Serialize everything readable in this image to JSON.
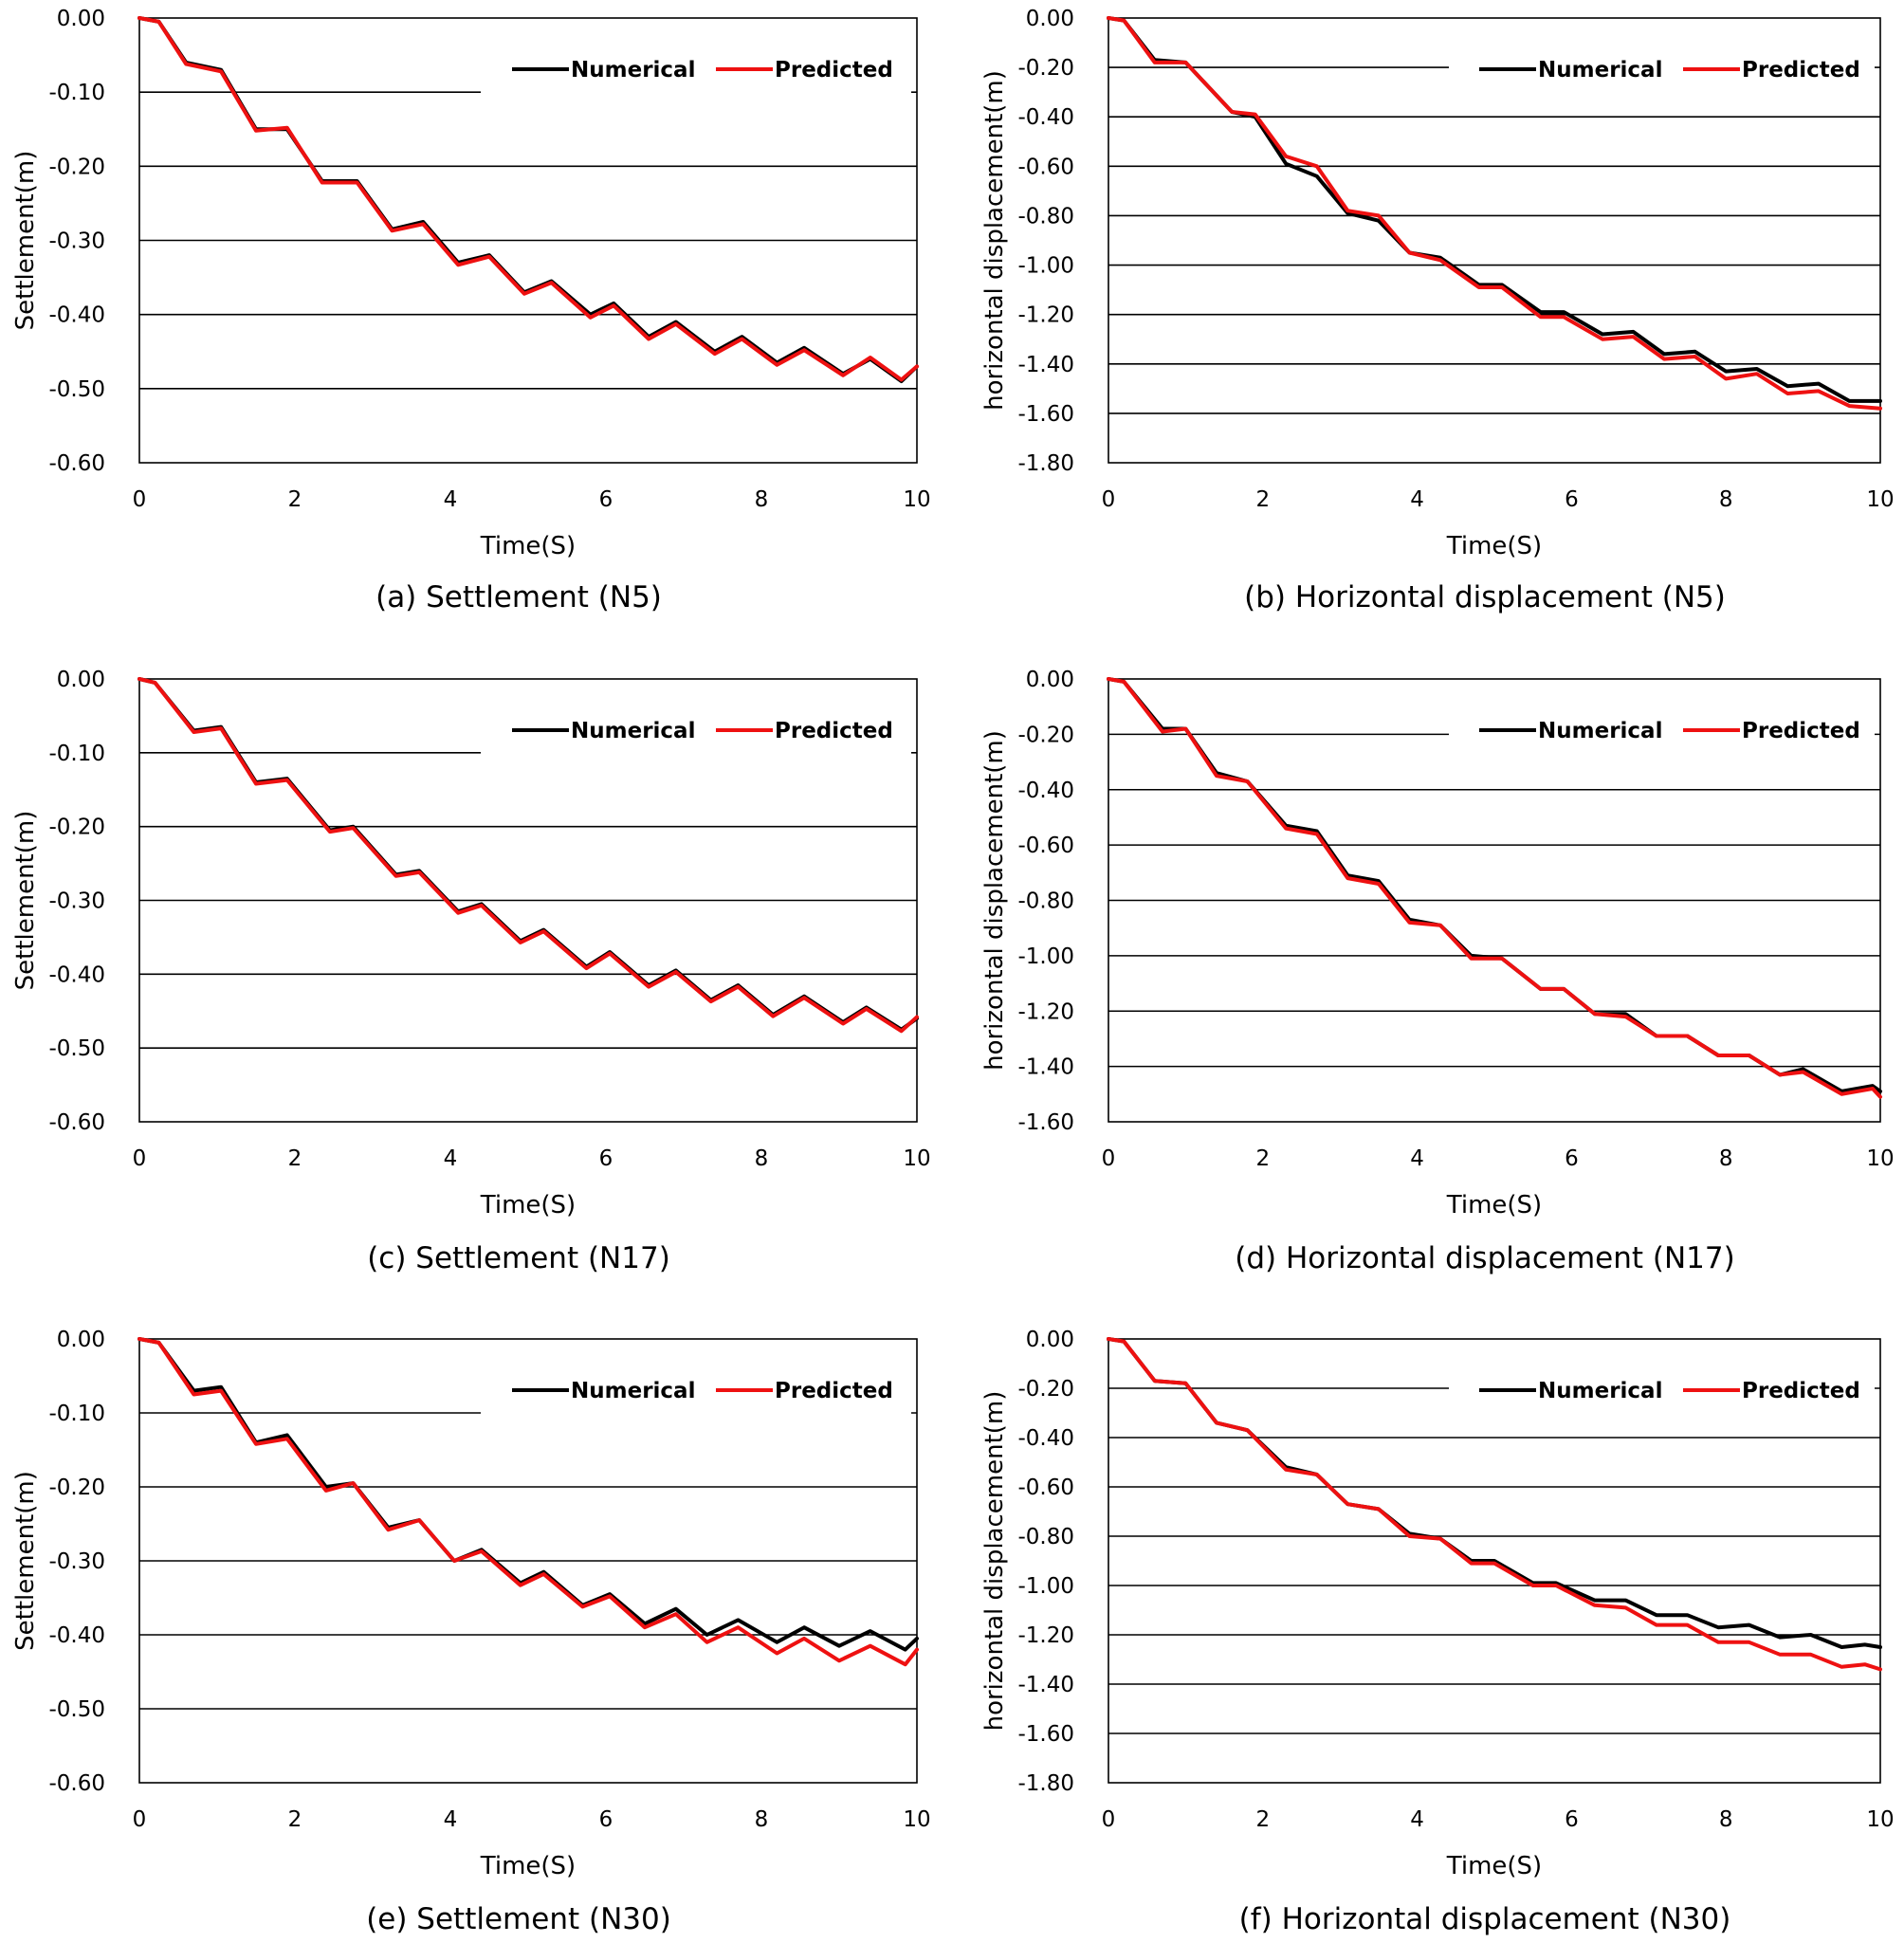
{
  "colors": {
    "numerical": "#000000",
    "predicted": "#ee1111",
    "grid": "#000000"
  },
  "chart_data": [
    {
      "type": "line",
      "caption": "(a)  Settlement  (N5)",
      "xlabel": "Time(S)",
      "ylabel": "Settlement(m)",
      "xlim": [
        0,
        10
      ],
      "ylim": [
        -0.6,
        0.0
      ],
      "xticks": [
        "0",
        "2",
        "4",
        "6",
        "8",
        "10"
      ],
      "yticks": [
        "0.00",
        "-0.10",
        "-0.20",
        "-0.30",
        "-0.40",
        "-0.50",
        "-0.60"
      ],
      "grid": "horizontal",
      "legend": "top-right",
      "series": [
        {
          "name": "Numerical",
          "x": [
            0,
            0.25,
            0.6,
            1.05,
            1.5,
            1.9,
            2.35,
            2.8,
            3.25,
            3.65,
            4.1,
            4.5,
            4.95,
            5.3,
            5.8,
            6.1,
            6.55,
            6.9,
            7.4,
            7.75,
            8.2,
            8.55,
            9.05,
            9.4,
            9.8,
            10
          ],
          "values": [
            0.0,
            -0.005,
            -0.06,
            -0.07,
            -0.15,
            -0.15,
            -0.22,
            -0.22,
            -0.285,
            -0.275,
            -0.33,
            -0.32,
            -0.37,
            -0.355,
            -0.4,
            -0.385,
            -0.43,
            -0.41,
            -0.45,
            -0.43,
            -0.465,
            -0.445,
            -0.48,
            -0.46,
            -0.49,
            -0.47
          ]
        },
        {
          "name": "Predicted",
          "x": [
            0,
            0.25,
            0.6,
            1.05,
            1.5,
            1.9,
            2.35,
            2.8,
            3.25,
            3.65,
            4.1,
            4.5,
            4.95,
            5.3,
            5.8,
            6.1,
            6.55,
            6.9,
            7.4,
            7.75,
            8.2,
            8.55,
            9.05,
            9.4,
            9.8,
            10
          ],
          "values": [
            0.0,
            -0.005,
            -0.062,
            -0.072,
            -0.152,
            -0.148,
            -0.222,
            -0.222,
            -0.287,
            -0.278,
            -0.333,
            -0.322,
            -0.372,
            -0.357,
            -0.404,
            -0.388,
            -0.433,
            -0.413,
            -0.453,
            -0.433,
            -0.468,
            -0.448,
            -0.482,
            -0.458,
            -0.488,
            -0.47
          ]
        }
      ]
    },
    {
      "type": "line",
      "caption": "(b)  Horizontal  displacement  (N5)",
      "xlabel": "Time(S)",
      "ylabel": "horizontal displacement(m)",
      "xlim": [
        0,
        10
      ],
      "ylim": [
        -1.8,
        0.0
      ],
      "xticks": [
        "0",
        "2",
        "4",
        "6",
        "8",
        "10"
      ],
      "yticks": [
        "0.00",
        "-0.20",
        "-0.40",
        "-0.60",
        "-0.80",
        "-1.00",
        "-1.20",
        "-1.40",
        "-1.60",
        "-1.80"
      ],
      "grid": "horizontal",
      "legend": "top-right",
      "series": [
        {
          "name": "Numerical",
          "x": [
            0,
            0.2,
            0.6,
            1.0,
            1.6,
            1.9,
            2.3,
            2.7,
            3.1,
            3.5,
            3.9,
            4.3,
            4.8,
            5.1,
            5.6,
            5.9,
            6.4,
            6.8,
            7.2,
            7.6,
            8.0,
            8.4,
            8.8,
            9.2,
            9.6,
            10
          ],
          "values": [
            0.0,
            -0.01,
            -0.17,
            -0.18,
            -0.38,
            -0.4,
            -0.59,
            -0.64,
            -0.79,
            -0.82,
            -0.95,
            -0.97,
            -1.08,
            -1.08,
            -1.19,
            -1.19,
            -1.28,
            -1.27,
            -1.36,
            -1.35,
            -1.43,
            -1.42,
            -1.49,
            -1.48,
            -1.55,
            -1.55
          ]
        },
        {
          "name": "Predicted",
          "x": [
            0,
            0.2,
            0.6,
            1.0,
            1.6,
            1.9,
            2.3,
            2.7,
            3.1,
            3.5,
            3.9,
            4.3,
            4.8,
            5.1,
            5.6,
            5.9,
            6.4,
            6.8,
            7.2,
            7.6,
            8.0,
            8.4,
            8.8,
            9.2,
            9.6,
            10
          ],
          "values": [
            0.0,
            -0.01,
            -0.18,
            -0.18,
            -0.38,
            -0.39,
            -0.56,
            -0.6,
            -0.78,
            -0.8,
            -0.95,
            -0.98,
            -1.09,
            -1.09,
            -1.21,
            -1.21,
            -1.3,
            -1.29,
            -1.38,
            -1.37,
            -1.46,
            -1.44,
            -1.52,
            -1.51,
            -1.57,
            -1.58
          ]
        }
      ]
    },
    {
      "type": "line",
      "caption": "(c)  Settlement  (N17)",
      "xlabel": "Time(S)",
      "ylabel": "Settlement(m)",
      "xlim": [
        0,
        10
      ],
      "ylim": [
        -0.6,
        0.0
      ],
      "xticks": [
        "0",
        "2",
        "4",
        "6",
        "8",
        "10"
      ],
      "yticks": [
        "0.00",
        "-0.10",
        "-0.20",
        "-0.30",
        "-0.40",
        "-0.50",
        "-0.60"
      ],
      "grid": "horizontal",
      "legend": "top-right",
      "series": [
        {
          "name": "Numerical",
          "x": [
            0,
            0.2,
            0.7,
            1.05,
            1.5,
            1.9,
            2.45,
            2.75,
            3.3,
            3.6,
            4.1,
            4.4,
            4.9,
            5.2,
            5.75,
            6.05,
            6.55,
            6.9,
            7.35,
            7.7,
            8.15,
            8.55,
            9.05,
            9.35,
            9.8,
            10
          ],
          "values": [
            0.0,
            -0.005,
            -0.07,
            -0.065,
            -0.14,
            -0.135,
            -0.205,
            -0.2,
            -0.265,
            -0.26,
            -0.315,
            -0.305,
            -0.355,
            -0.34,
            -0.39,
            -0.37,
            -0.415,
            -0.395,
            -0.435,
            -0.415,
            -0.455,
            -0.43,
            -0.465,
            -0.445,
            -0.475,
            -0.46
          ]
        },
        {
          "name": "Predicted",
          "x": [
            0,
            0.2,
            0.7,
            1.05,
            1.5,
            1.9,
            2.45,
            2.75,
            3.3,
            3.6,
            4.1,
            4.4,
            4.9,
            5.2,
            5.75,
            6.05,
            6.55,
            6.9,
            7.35,
            7.7,
            8.15,
            8.55,
            9.05,
            9.35,
            9.8,
            10
          ],
          "values": [
            0.0,
            -0.005,
            -0.072,
            -0.067,
            -0.142,
            -0.137,
            -0.207,
            -0.202,
            -0.267,
            -0.262,
            -0.317,
            -0.307,
            -0.357,
            -0.342,
            -0.392,
            -0.372,
            -0.417,
            -0.397,
            -0.437,
            -0.417,
            -0.457,
            -0.432,
            -0.467,
            -0.447,
            -0.477,
            -0.458
          ]
        }
      ]
    },
    {
      "type": "line",
      "caption": "(d)  Horizontal  displacement  (N17)",
      "xlabel": "Time(S)",
      "ylabel": "horizontal displacement(m)",
      "xlim": [
        0,
        10
      ],
      "ylim": [
        -1.6,
        0.0
      ],
      "xticks": [
        "0",
        "2",
        "4",
        "6",
        "8",
        "10"
      ],
      "yticks": [
        "0.00",
        "-0.20",
        "-0.40",
        "-0.60",
        "-0.80",
        "-1.00",
        "-1.20",
        "-1.40",
        "-1.60"
      ],
      "grid": "horizontal",
      "legend": "top-right",
      "series": [
        {
          "name": "Numerical",
          "x": [
            0,
            0.2,
            0.7,
            1.0,
            1.4,
            1.8,
            2.3,
            2.7,
            3.1,
            3.5,
            3.9,
            4.3,
            4.7,
            5.1,
            5.6,
            5.9,
            6.3,
            6.7,
            7.1,
            7.5,
            7.9,
            8.3,
            8.7,
            9.0,
            9.5,
            9.9,
            10
          ],
          "values": [
            0.0,
            -0.01,
            -0.18,
            -0.18,
            -0.34,
            -0.37,
            -0.53,
            -0.55,
            -0.71,
            -0.73,
            -0.87,
            -0.89,
            -1.0,
            -1.01,
            -1.12,
            -1.12,
            -1.21,
            -1.21,
            -1.29,
            -1.29,
            -1.36,
            -1.36,
            -1.43,
            -1.41,
            -1.49,
            -1.47,
            -1.49
          ]
        },
        {
          "name": "Predicted",
          "x": [
            0,
            0.2,
            0.7,
            1.0,
            1.4,
            1.8,
            2.3,
            2.7,
            3.1,
            3.5,
            3.9,
            4.3,
            4.7,
            5.1,
            5.6,
            5.9,
            6.3,
            6.7,
            7.1,
            7.5,
            7.9,
            8.3,
            8.7,
            9.0,
            9.5,
            9.9,
            10
          ],
          "values": [
            0.0,
            -0.01,
            -0.19,
            -0.18,
            -0.35,
            -0.37,
            -0.54,
            -0.56,
            -0.72,
            -0.74,
            -0.88,
            -0.89,
            -1.01,
            -1.01,
            -1.12,
            -1.12,
            -1.21,
            -1.22,
            -1.29,
            -1.29,
            -1.36,
            -1.36,
            -1.43,
            -1.42,
            -1.5,
            -1.48,
            -1.51
          ]
        }
      ]
    },
    {
      "type": "line",
      "caption": "(e)  Settlement  (N30)",
      "xlabel": "Time(S)",
      "ylabel": "Settlement(m)",
      "xlim": [
        0,
        10
      ],
      "ylim": [
        -0.6,
        0.0
      ],
      "xticks": [
        "0",
        "2",
        "4",
        "6",
        "8",
        "10"
      ],
      "yticks": [
        "0.00",
        "-0.10",
        "-0.20",
        "-0.30",
        "-0.40",
        "-0.50",
        "-0.60"
      ],
      "grid": "horizontal",
      "legend": "top-right",
      "series": [
        {
          "name": "Numerical",
          "x": [
            0,
            0.25,
            0.7,
            1.05,
            1.5,
            1.9,
            2.4,
            2.75,
            3.2,
            3.6,
            4.05,
            4.4,
            4.9,
            5.2,
            5.7,
            6.05,
            6.5,
            6.9,
            7.3,
            7.7,
            8.2,
            8.55,
            9.0,
            9.4,
            9.85,
            10
          ],
          "values": [
            0.0,
            -0.005,
            -0.07,
            -0.065,
            -0.14,
            -0.13,
            -0.2,
            -0.195,
            -0.255,
            -0.245,
            -0.3,
            -0.285,
            -0.33,
            -0.315,
            -0.36,
            -0.345,
            -0.385,
            -0.365,
            -0.4,
            -0.38,
            -0.41,
            -0.39,
            -0.415,
            -0.395,
            -0.42,
            -0.405
          ]
        },
        {
          "name": "Predicted",
          "x": [
            0,
            0.25,
            0.7,
            1.05,
            1.5,
            1.9,
            2.4,
            2.75,
            3.2,
            3.6,
            4.05,
            4.4,
            4.9,
            5.2,
            5.7,
            6.05,
            6.5,
            6.9,
            7.3,
            7.7,
            8.2,
            8.55,
            9.0,
            9.4,
            9.85,
            10
          ],
          "values": [
            0.0,
            -0.005,
            -0.075,
            -0.07,
            -0.142,
            -0.135,
            -0.205,
            -0.195,
            -0.258,
            -0.245,
            -0.3,
            -0.287,
            -0.333,
            -0.318,
            -0.362,
            -0.348,
            -0.39,
            -0.372,
            -0.41,
            -0.39,
            -0.425,
            -0.405,
            -0.435,
            -0.415,
            -0.44,
            -0.42
          ]
        }
      ]
    },
    {
      "type": "line",
      "caption": "(f)  Horizontal  displacement  (N30)",
      "xlabel": "Time(S)",
      "ylabel": "horizontal displacement(m)",
      "xlim": [
        0,
        10
      ],
      "ylim": [
        -1.8,
        0.0
      ],
      "xticks": [
        "0",
        "2",
        "4",
        "6",
        "8",
        "10"
      ],
      "yticks": [
        "0.00",
        "-0.20",
        "-0.40",
        "-0.60",
        "-0.80",
        "-1.00",
        "-1.20",
        "-1.40",
        "-1.60",
        "-1.80"
      ],
      "grid": "horizontal",
      "legend": "top-right",
      "series": [
        {
          "name": "Numerical",
          "x": [
            0,
            0.2,
            0.6,
            1.0,
            1.4,
            1.8,
            2.3,
            2.7,
            3.1,
            3.5,
            3.9,
            4.3,
            4.7,
            5.0,
            5.5,
            5.8,
            6.3,
            6.7,
            7.1,
            7.5,
            7.9,
            8.3,
            8.7,
            9.1,
            9.5,
            9.8,
            10
          ],
          "values": [
            0.0,
            -0.01,
            -0.17,
            -0.18,
            -0.34,
            -0.37,
            -0.52,
            -0.55,
            -0.67,
            -0.69,
            -0.79,
            -0.81,
            -0.9,
            -0.9,
            -0.99,
            -0.99,
            -1.06,
            -1.06,
            -1.12,
            -1.12,
            -1.17,
            -1.16,
            -1.21,
            -1.2,
            -1.25,
            -1.24,
            -1.25
          ]
        },
        {
          "name": "Predicted",
          "x": [
            0,
            0.2,
            0.6,
            1.0,
            1.4,
            1.8,
            2.3,
            2.7,
            3.1,
            3.5,
            3.9,
            4.3,
            4.7,
            5.0,
            5.5,
            5.8,
            6.3,
            6.7,
            7.1,
            7.5,
            7.9,
            8.3,
            8.7,
            9.1,
            9.5,
            9.8,
            10
          ],
          "values": [
            0.0,
            -0.01,
            -0.17,
            -0.18,
            -0.34,
            -0.37,
            -0.53,
            -0.55,
            -0.67,
            -0.69,
            -0.8,
            -0.81,
            -0.91,
            -0.91,
            -1.0,
            -1.0,
            -1.08,
            -1.09,
            -1.16,
            -1.16,
            -1.23,
            -1.23,
            -1.28,
            -1.28,
            -1.33,
            -1.32,
            -1.34
          ]
        }
      ]
    }
  ]
}
